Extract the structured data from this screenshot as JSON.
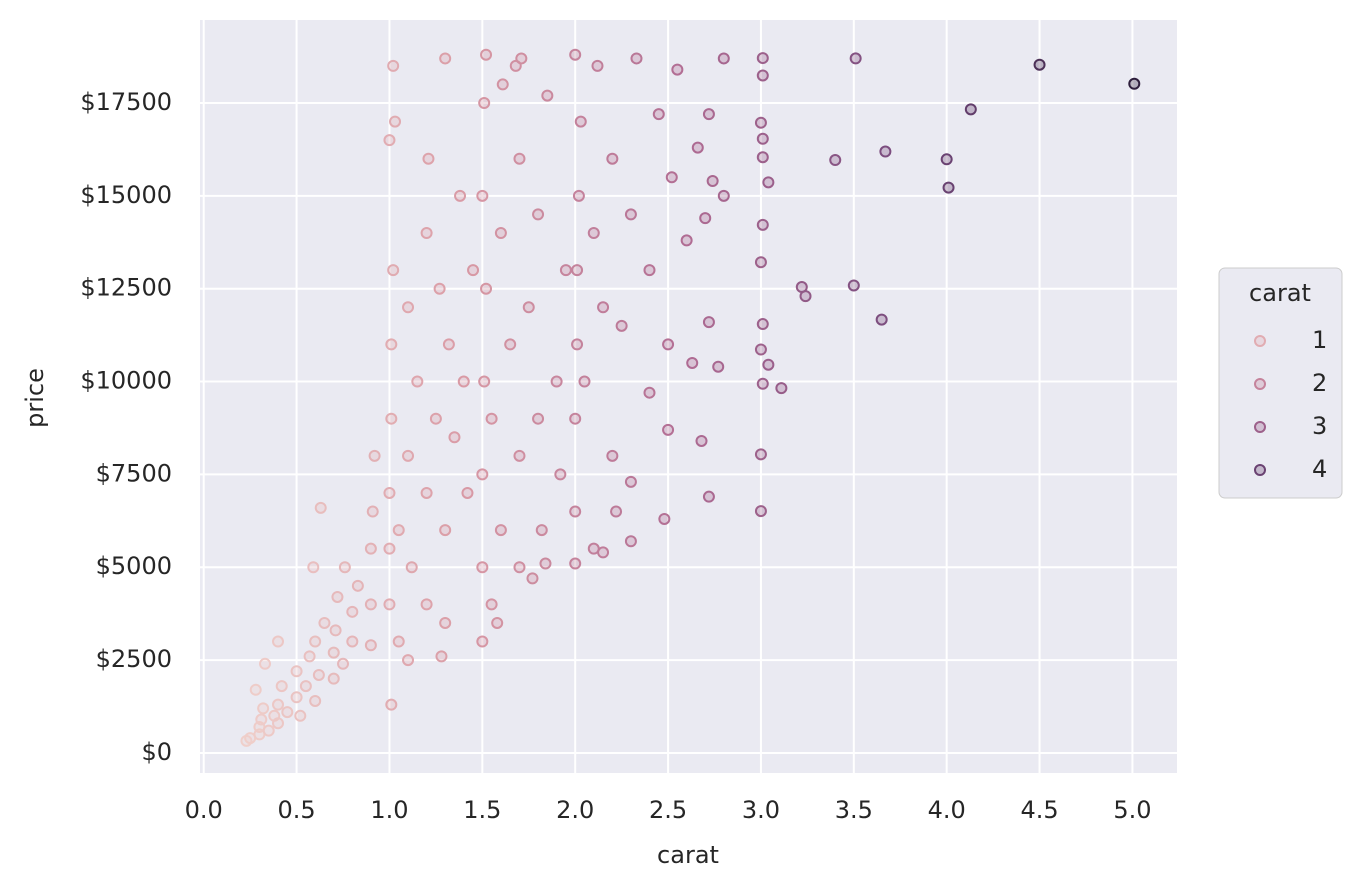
{
  "chart_data": {
    "type": "scatter",
    "xlabel": "carat",
    "ylabel": "price",
    "x": [
      0.23,
      0.25,
      0.3,
      0.3,
      0.31,
      0.32,
      0.35,
      0.38,
      0.4,
      0.4,
      0.42,
      0.45,
      0.5,
      0.5,
      0.52,
      0.55,
      0.57,
      0.6,
      0.6,
      0.62,
      0.65,
      0.7,
      0.7,
      0.71,
      0.72,
      0.75,
      0.76,
      0.8,
      0.8,
      0.83,
      0.9,
      0.9,
      0.9,
      0.91,
      0.92,
      0.33,
      0.63,
      0.59,
      0.4,
      0.28,
      1.0,
      1.0,
      1.0,
      1.01,
      1.01,
      1.02,
      1.0,
      1.02,
      1.03,
      1.05,
      1.1,
      1.1,
      1.12,
      1.15,
      1.2,
      1.2,
      1.21,
      1.25,
      1.27,
      1.3,
      1.3,
      1.32,
      1.35,
      1.38,
      1.4,
      1.42,
      1.45,
      1.05,
      1.01,
      1.1,
      1.2,
      1.28,
      1.3,
      1.5,
      1.5,
      1.5,
      1.51,
      1.52,
      1.5,
      1.51,
      1.52,
      1.55,
      1.55,
      1.6,
      1.6,
      1.61,
      1.65,
      1.7,
      1.7,
      1.7,
      1.71,
      1.75,
      1.77,
      1.8,
      1.8,
      1.82,
      1.85,
      1.9,
      1.92,
      1.95,
      1.84,
      1.58,
      1.68,
      2.0,
      2.0,
      2.0,
      2.01,
      2.01,
      2.02,
      2.03,
      2.0,
      2.05,
      2.1,
      2.1,
      2.12,
      2.15,
      2.2,
      2.2,
      2.22,
      2.25,
      2.3,
      2.3,
      2.33,
      2.4,
      2.4,
      2.45,
      2.48,
      2.5,
      2.5,
      2.52,
      2.55,
      2.6,
      2.63,
      2.66,
      2.68,
      2.7,
      2.72,
      2.72,
      2.74,
      2.77,
      2.8,
      2.8,
      2.72,
      2.3,
      2.15,
      3.0,
      3.0,
      3.01,
      3.0,
      3.01,
      3.0,
      3.01,
      3.01,
      3.01,
      3.0,
      3.01,
      3.01,
      3.04,
      3.04,
      3.11,
      3.22,
      3.24,
      3.4,
      3.5,
      3.51,
      3.65,
      3.67,
      4.0,
      4.01,
      4.13,
      4.5,
      5.01
    ],
    "values": [
      326,
      400,
      500,
      700,
      900,
      1200,
      600,
      1000,
      800,
      1300,
      1800,
      1100,
      1500,
      2200,
      1000,
      1800,
      2600,
      1400,
      3000,
      2100,
      3500,
      2000,
      2700,
      3300,
      4200,
      2400,
      5000,
      3000,
      3800,
      4500,
      2900,
      4000,
      5500,
      6500,
      8000,
      2400,
      6600,
      5000,
      3000,
      1700,
      4000,
      5500,
      7000,
      9000,
      11000,
      13000,
      16500,
      18500,
      17000,
      6000,
      8000,
      12000,
      5000,
      10000,
      7000,
      14000,
      16000,
      9000,
      12500,
      18700,
      6000,
      11000,
      8500,
      15000,
      10000,
      7000,
      13000,
      3000,
      1300,
      2500,
      4000,
      2600,
      3500,
      3000,
      5000,
      7500,
      10000,
      12500,
      15000,
      17500,
      18800,
      4000,
      9000,
      6000,
      14000,
      18000,
      11000,
      5000,
      8000,
      16000,
      18700,
      12000,
      4700,
      9000,
      14500,
      6000,
      17700,
      10000,
      7500,
      13000,
      5100,
      3500,
      18500,
      5100,
      6500,
      9000,
      11000,
      13000,
      15000,
      17000,
      18800,
      10000,
      5500,
      14000,
      18500,
      12000,
      8000,
      16000,
      6500,
      11500,
      7300,
      14500,
      18700,
      9700,
      13000,
      17200,
      6300,
      8700,
      11000,
      15500,
      18400,
      13800,
      10500,
      16300,
      8400,
      14400,
      6900,
      11600,
      15400,
      10400,
      18700,
      15000,
      17200,
      5700,
      5400,
      6512,
      8040,
      9941,
      10863,
      11548,
      13213,
      14220,
      16040,
      16538,
      16970,
      18242,
      18710,
      10453,
      15364,
      9823,
      12545,
      12300,
      15964,
      12587,
      18701,
      11668,
      16193,
      15984,
      15223,
      17329,
      18531,
      18018
    ],
    "xlim": [
      -0.02,
      5.24
    ],
    "ylim": [
      -540,
      19735
    ],
    "xticks": [
      {
        "value": 0,
        "label": "0.0"
      },
      0.5,
      {
        "value": 1,
        "label": "1.0"
      },
      1.5,
      {
        "value": 2,
        "label": "2.0"
      },
      2.5,
      {
        "value": 3,
        "label": "3.0"
      },
      3.5,
      {
        "value": 4,
        "label": "4.0"
      },
      4.5,
      {
        "value": 5,
        "label": "5.0"
      }
    ],
    "yticks": [
      {
        "value": 0,
        "label": "$0"
      },
      {
        "value": 2500,
        "label": "$2500"
      },
      {
        "value": 5000,
        "label": "$5000"
      },
      {
        "value": 7500,
        "label": "$7500"
      },
      {
        "value": 10000,
        "label": "$10000"
      },
      {
        "value": 12500,
        "label": "$12500"
      },
      {
        "value": 15000,
        "label": "$15000"
      },
      {
        "value": 17500,
        "label": "$17500"
      }
    ],
    "grid": true,
    "palette": [
      "#f0d0cb",
      "#d99aa5",
      "#b06c93",
      "#75497c",
      "#2e1e3c"
    ],
    "hue_lim": [
      0.2,
      5.01
    ],
    "legend": {
      "title": "carat",
      "values": [
        1,
        2,
        3,
        4
      ],
      "position": "right"
    }
  }
}
